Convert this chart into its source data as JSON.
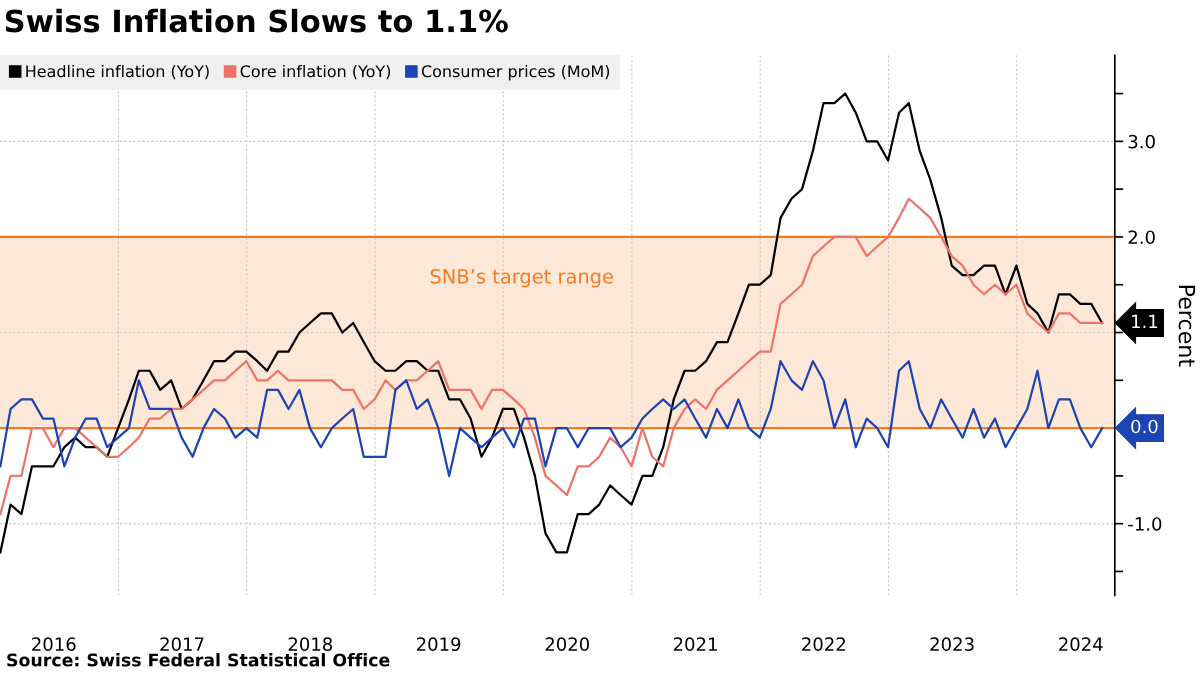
{
  "chart_data": {
    "type": "line",
    "title": "Swiss Inflation Slows to 1.1%",
    "ylabel": "Percent",
    "annotations": [
      "Source: Swiss Federal Statistical Office"
    ],
    "x": [
      "2016-01-31",
      "2016-02-29",
      "2016-03-31",
      "2016-04-30",
      "2016-05-31",
      "2016-06-30",
      "2016-07-31",
      "2016-08-31",
      "2016-09-30",
      "2016-10-31",
      "2016-11-30",
      "2016-12-31",
      "2017-01-31",
      "2017-02-28",
      "2017-03-31",
      "2017-04-30",
      "2017-05-31",
      "2017-06-30",
      "2017-07-31",
      "2017-08-31",
      "2017-09-30",
      "2017-10-31",
      "2017-11-30",
      "2017-12-31",
      "2018-01-31",
      "2018-02-28",
      "2018-03-31",
      "2018-04-30",
      "2018-05-31",
      "2018-06-30",
      "2018-07-31",
      "2018-08-31",
      "2018-09-30",
      "2018-10-31",
      "2018-11-30",
      "2018-12-31",
      "2019-01-31",
      "2019-02-28",
      "2019-03-31",
      "2019-04-30",
      "2019-05-31",
      "2019-06-30",
      "2019-07-31",
      "2019-08-31",
      "2019-09-30",
      "2019-10-31",
      "2019-11-30",
      "2019-12-31",
      "2020-01-31",
      "2020-02-29",
      "2020-03-31",
      "2020-04-30",
      "2020-05-31",
      "2020-06-30",
      "2020-07-31",
      "2020-08-31",
      "2020-09-30",
      "2020-10-31",
      "2020-11-30",
      "2020-12-31",
      "2021-01-31",
      "2021-02-28",
      "2021-03-31",
      "2021-04-30",
      "2021-05-31",
      "2021-06-30",
      "2021-07-31",
      "2021-08-31",
      "2021-09-30",
      "2021-10-31",
      "2021-11-30",
      "2021-12-31",
      "2022-01-31",
      "2022-02-28",
      "2022-03-31",
      "2022-04-30",
      "2022-05-31",
      "2022-06-30",
      "2022-07-31",
      "2022-08-31",
      "2022-09-30",
      "2022-10-31",
      "2022-11-30",
      "2022-12-31",
      "2023-01-31",
      "2023-02-28",
      "2023-03-31",
      "2023-04-30",
      "2023-05-31",
      "2023-06-30",
      "2023-07-31",
      "2023-08-31",
      "2023-09-30",
      "2023-10-31",
      "2023-11-30",
      "2023-12-31",
      "2024-01-31",
      "2024-02-29",
      "2024-03-31",
      "2024-04-30",
      "2024-05-31",
      "2024-06-30",
      "2024-07-31",
      "2024-08-31"
    ],
    "series": [
      {
        "name": "Headline inflation (YoY)",
        "color": "#000000",
        "values": [
          -1.3,
          -0.8,
          -0.9,
          -0.4,
          -0.4,
          -0.4,
          -0.2,
          -0.1,
          -0.2,
          -0.2,
          -0.3,
          0.0,
          0.3,
          0.6,
          0.6,
          0.4,
          0.5,
          0.2,
          0.3,
          0.5,
          0.7,
          0.7,
          0.8,
          0.8,
          0.7,
          0.6,
          0.8,
          0.8,
          1.0,
          1.1,
          1.2,
          1.2,
          1.0,
          1.1,
          0.9,
          0.7,
          0.6,
          0.6,
          0.7,
          0.7,
          0.6,
          0.6,
          0.3,
          0.3,
          0.1,
          -0.3,
          -0.1,
          0.2,
          0.2,
          -0.1,
          -0.5,
          -1.1,
          -1.3,
          -1.3,
          -0.9,
          -0.9,
          -0.8,
          -0.6,
          -0.7,
          -0.8,
          -0.5,
          -0.5,
          -0.2,
          0.3,
          0.6,
          0.6,
          0.7,
          0.9,
          0.9,
          1.2,
          1.5,
          1.5,
          1.6,
          2.2,
          2.4,
          2.5,
          2.9,
          3.4,
          3.4,
          3.5,
          3.3,
          3.0,
          3.0,
          2.8,
          3.3,
          3.4,
          2.9,
          2.6,
          2.2,
          1.7,
          1.6,
          1.6,
          1.7,
          1.7,
          1.4,
          1.7,
          1.3,
          1.2,
          1.0,
          1.4,
          1.4,
          1.3,
          1.3,
          1.1
        ],
        "value_labels": [
          null,
          null,
          null,
          null,
          null,
          null,
          null,
          null,
          null,
          null,
          null,
          null,
          null,
          null,
          null,
          null,
          null,
          null,
          null,
          null,
          null,
          null,
          null,
          null,
          null,
          null,
          null,
          null,
          null,
          null,
          null,
          null,
          null,
          null,
          null,
          null,
          null,
          null,
          null,
          null,
          null,
          null,
          null,
          null,
          null,
          null,
          null,
          null,
          null,
          null,
          null,
          null,
          null,
          null,
          null,
          null,
          null,
          null,
          null,
          null,
          null,
          null,
          null,
          null,
          null,
          null,
          null,
          null,
          null,
          null,
          null,
          null,
          null,
          null,
          null,
          null,
          null,
          null,
          null,
          null,
          null,
          null,
          null,
          null,
          null,
          null,
          null,
          null,
          null,
          null,
          null,
          null,
          null,
          null,
          null,
          null,
          null,
          null,
          null,
          null,
          null,
          null,
          null,
          "1.1"
        ]
      },
      {
        "name": "Core inflation (YoY)",
        "color": "#ec7468",
        "values": [
          -0.9,
          -0.5,
          -0.5,
          0.0,
          0.0,
          -0.2,
          0.0,
          0.0,
          -0.1,
          -0.2,
          -0.3,
          -0.3,
          -0.2,
          -0.1,
          0.1,
          0.1,
          0.2,
          0.2,
          0.3,
          0.4,
          0.5,
          0.5,
          0.6,
          0.7,
          0.5,
          0.5,
          0.6,
          0.5,
          0.5,
          0.5,
          0.5,
          0.5,
          0.4,
          0.4,
          0.2,
          0.3,
          0.5,
          0.4,
          0.5,
          0.5,
          0.6,
          0.7,
          0.4,
          0.4,
          0.4,
          0.2,
          0.4,
          0.4,
          0.3,
          0.2,
          -0.1,
          -0.5,
          -0.6,
          -0.7,
          -0.4,
          -0.4,
          -0.3,
          -0.1,
          -0.2,
          -0.4,
          0.0,
          -0.3,
          -0.4,
          0.0,
          0.2,
          0.3,
          0.2,
          0.4,
          0.5,
          0.6,
          0.7,
          0.8,
          0.8,
          1.3,
          1.4,
          1.5,
          1.8,
          1.9,
          2.0,
          2.0,
          2.0,
          1.8,
          1.9,
          2.0,
          2.2,
          2.4,
          2.3,
          2.2,
          2.0,
          1.8,
          1.7,
          1.5,
          1.4,
          1.5,
          1.4,
          1.5,
          1.2,
          1.1,
          1.0,
          1.2,
          1.2,
          1.1,
          1.1,
          1.1
        ]
      },
      {
        "name": "Consumer prices (MoM)",
        "color": "#1c44b4",
        "values": [
          -0.4,
          0.2,
          0.3,
          0.3,
          0.1,
          0.1,
          -0.4,
          -0.1,
          0.1,
          0.1,
          -0.2,
          -0.1,
          0.0,
          0.5,
          0.2,
          0.2,
          0.2,
          -0.1,
          -0.3,
          0.0,
          0.2,
          0.1,
          -0.1,
          0.0,
          -0.1,
          0.4,
          0.4,
          0.2,
          0.4,
          0.0,
          -0.2,
          0.0,
          0.1,
          0.2,
          -0.3,
          -0.3,
          -0.3,
          0.4,
          0.5,
          0.2,
          0.3,
          0.0,
          -0.5,
          0.0,
          -0.1,
          -0.2,
          -0.1,
          0.0,
          -0.2,
          0.1,
          0.1,
          -0.4,
          0.0,
          0.0,
          -0.2,
          0.0,
          0.0,
          0.0,
          -0.2,
          -0.1,
          0.1,
          0.2,
          0.3,
          0.2,
          0.3,
          0.1,
          -0.1,
          0.2,
          0.0,
          0.3,
          0.0,
          -0.1,
          0.2,
          0.7,
          0.5,
          0.4,
          0.7,
          0.5,
          0.0,
          0.3,
          -0.2,
          0.1,
          0.0,
          -0.2,
          0.6,
          0.7,
          0.2,
          0.0,
          0.3,
          0.1,
          -0.1,
          0.2,
          -0.1,
          0.1,
          -0.2,
          0.0,
          0.2,
          0.6,
          0.0,
          0.3,
          0.3,
          0.0,
          -0.2,
          0.0
        ],
        "value_labels": [
          null,
          null,
          null,
          null,
          null,
          null,
          null,
          null,
          null,
          null,
          null,
          null,
          null,
          null,
          null,
          null,
          null,
          null,
          null,
          null,
          null,
          null,
          null,
          null,
          null,
          null,
          null,
          null,
          null,
          null,
          null,
          null,
          null,
          null,
          null,
          null,
          null,
          null,
          null,
          null,
          null,
          null,
          null,
          null,
          null,
          null,
          null,
          null,
          null,
          null,
          null,
          null,
          null,
          null,
          null,
          null,
          null,
          null,
          null,
          null,
          null,
          null,
          null,
          null,
          null,
          null,
          null,
          null,
          null,
          null,
          null,
          null,
          null,
          null,
          null,
          null,
          null,
          null,
          null,
          null,
          null,
          null,
          null,
          null,
          null,
          null,
          null,
          null,
          null,
          null,
          null,
          null,
          null,
          null,
          null,
          null,
          null,
          null,
          null,
          null,
          null,
          null,
          null,
          "0.0"
        ]
      }
    ],
    "xlim": [
      "2016-01-30",
      "2024-10-06"
    ],
    "xticks": [
      {
        "value": "2016-07-01",
        "label": "2016"
      },
      {
        "value": "2017-01-01",
        "label": null
      },
      {
        "value": "2017-07-01",
        "label": "2017"
      },
      {
        "value": "2018-01-01",
        "label": null
      },
      {
        "value": "2018-07-01",
        "label": "2018"
      },
      {
        "value": "2019-01-01",
        "label": null
      },
      {
        "value": "2019-07-01",
        "label": "2019"
      },
      {
        "value": "2020-01-01",
        "label": null
      },
      {
        "value": "2020-07-01",
        "label": "2020"
      },
      {
        "value": "2021-01-01",
        "label": null
      },
      {
        "value": "2021-07-01",
        "label": "2021"
      },
      {
        "value": "2022-01-01",
        "label": null
      },
      {
        "value": "2022-07-01",
        "label": "2022"
      },
      {
        "value": "2023-01-01",
        "label": null
      },
      {
        "value": "2023-07-01",
        "label": "2023"
      },
      {
        "value": "2024-01-01",
        "label": null
      },
      {
        "value": "2024-07-01",
        "label": "2024"
      }
    ],
    "ylim": [
      -1.75,
      3.9
    ],
    "yticks": [
      {
        "value": -1.5,
        "label": null
      },
      {
        "value": -1.0,
        "label": "-1.0"
      },
      {
        "value": -0.5,
        "label": null
      },
      {
        "value": 0,
        "label": null
      },
      {
        "value": 0.5,
        "label": null
      },
      {
        "value": 1,
        "label": null
      },
      {
        "value": 1.5,
        "label": null
      },
      {
        "value": 2,
        "label": "2.0"
      },
      {
        "value": 2.5,
        "label": null
      },
      {
        "value": 3,
        "label": "3.0"
      },
      {
        "value": 3.5,
        "label": null
      }
    ],
    "bands": [
      {
        "axis": "y",
        "from": 0,
        "to": 2,
        "label": "SNB’s target range",
        "color": "#f47b20"
      }
    ],
    "grid": true,
    "legend": "top left"
  }
}
